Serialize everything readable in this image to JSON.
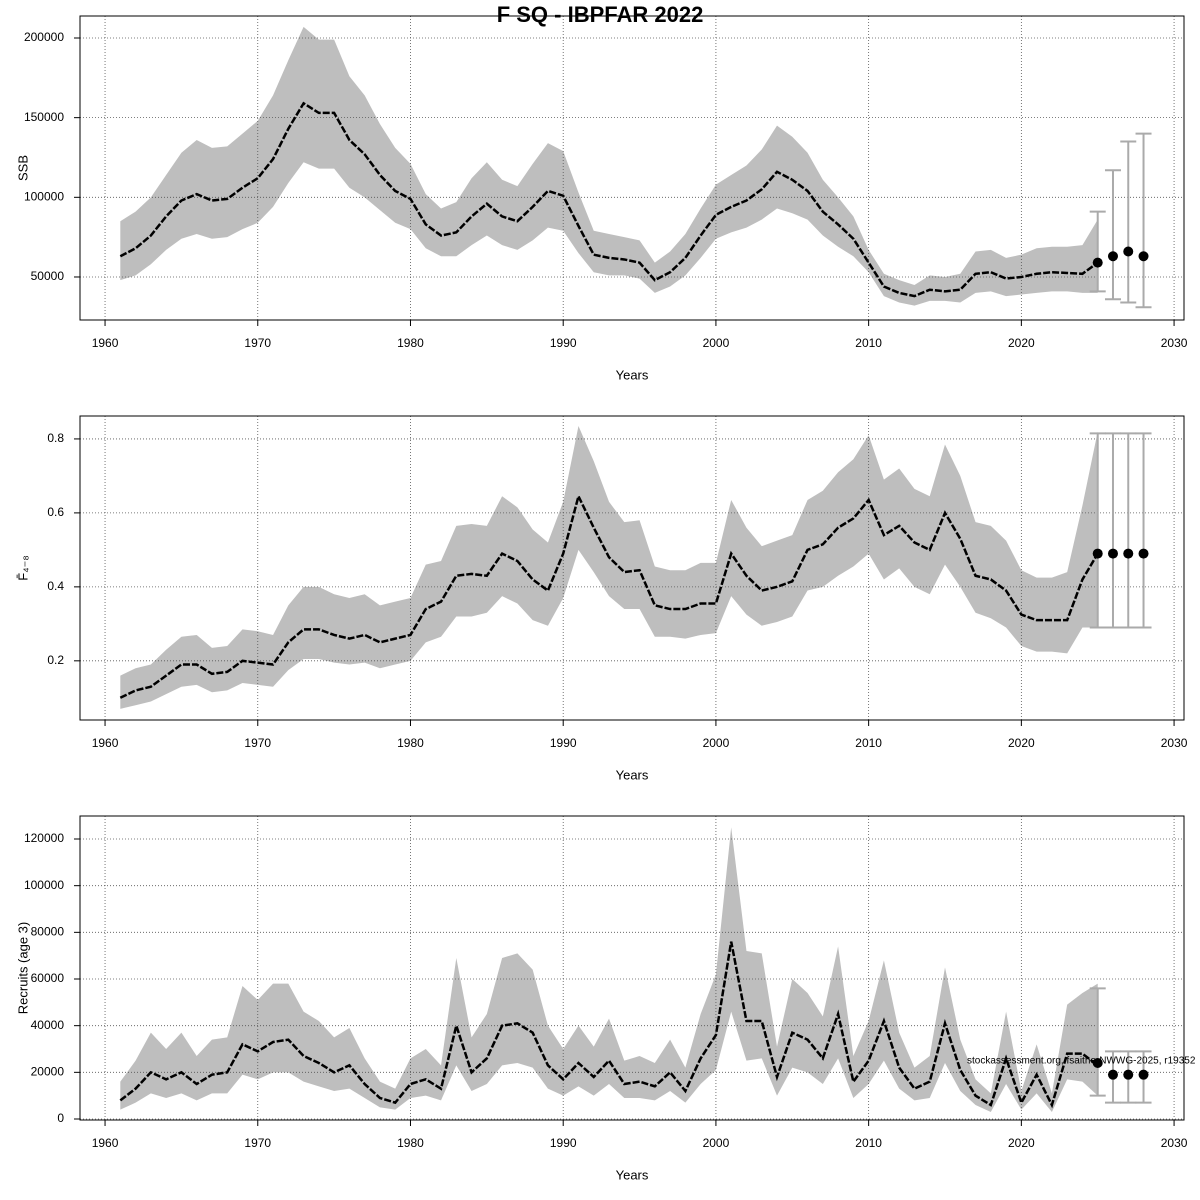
{
  "title": "F SQ - IBPFAR 2022",
  "chart_data": [
    {
      "type": "line",
      "ylabel": "SSB",
      "xlabel": "Years",
      "x": [
        1961,
        1962,
        1963,
        1964,
        1965,
        1966,
        1967,
        1968,
        1969,
        1970,
        1971,
        1972,
        1973,
        1974,
        1975,
        1976,
        1977,
        1978,
        1979,
        1980,
        1981,
        1982,
        1983,
        1984,
        1985,
        1986,
        1987,
        1988,
        1989,
        1990,
        1991,
        1992,
        1993,
        1994,
        1995,
        1996,
        1997,
        1998,
        1999,
        2000,
        2001,
        2002,
        2003,
        2004,
        2005,
        2006,
        2007,
        2008,
        2009,
        2010,
        2011,
        2012,
        2013,
        2014,
        2015,
        2016,
        2017,
        2018,
        2019,
        2020,
        2021,
        2022,
        2023,
        2024,
        2025
      ],
      "series": [
        {
          "color": "#000000",
          "values": [
            63000,
            68000,
            76000,
            88000,
            98000,
            102000,
            98000,
            99000,
            106000,
            112000,
            124000,
            143000,
            159000,
            153000,
            153000,
            136000,
            127000,
            114000,
            104000,
            99000,
            83000,
            76000,
            78000,
            88000,
            96000,
            88000,
            85000,
            94000,
            104000,
            101000,
            82000,
            64000,
            62000,
            61000,
            59000,
            48000,
            53000,
            62000,
            76000,
            89000,
            94000,
            98000,
            105000,
            116000,
            111000,
            104000,
            91000,
            83000,
            74000,
            59000,
            44000,
            40000,
            38000,
            42000,
            41000,
            42000,
            52000,
            53000,
            49000,
            50000,
            52000,
            53000,
            52500,
            52000,
            59000
          ]
        }
      ],
      "upper": [
        85000,
        91000,
        100000,
        114000,
        128000,
        136000,
        131000,
        132000,
        140000,
        148000,
        164000,
        186000,
        207000,
        199000,
        199000,
        176000,
        164000,
        146000,
        131000,
        121000,
        102000,
        93000,
        97000,
        112000,
        122000,
        111000,
        107000,
        121000,
        134000,
        129000,
        103000,
        79000,
        77000,
        75000,
        73000,
        59000,
        66000,
        77000,
        93000,
        108000,
        114000,
        120000,
        130000,
        145000,
        138000,
        128000,
        111000,
        100000,
        88000,
        67000,
        52000,
        48000,
        45000,
        51000,
        50000,
        52000,
        66000,
        67000,
        62000,
        64000,
        68000,
        69000,
        69000,
        70000,
        86000
      ],
      "lower": [
        48000,
        51000,
        58000,
        67000,
        74000,
        77000,
        74000,
        75000,
        80000,
        84000,
        94000,
        109000,
        122000,
        118000,
        118000,
        106000,
        100000,
        92000,
        84000,
        80000,
        68000,
        63000,
        63000,
        70000,
        76000,
        70000,
        67000,
        73000,
        81000,
        79000,
        65000,
        53000,
        51000,
        51000,
        49000,
        40000,
        44000,
        51000,
        62000,
        74000,
        78000,
        81000,
        86000,
        93000,
        90000,
        86000,
        76000,
        69000,
        63000,
        53000,
        38000,
        34000,
        32000,
        35000,
        35000,
        34000,
        40000,
        41000,
        38000,
        39000,
        40000,
        41000,
        41000,
        40000,
        40000
      ],
      "band_color": "#bebebe",
      "forecast": {
        "x": [
          2025,
          2026,
          2027,
          2028
        ],
        "values": [
          59000,
          63000,
          66000,
          63000
        ],
        "lower": [
          41000,
          36000,
          34000,
          31000
        ],
        "upper": [
          91000,
          117000,
          135000,
          140000
        ],
        "color": "#000000",
        "bar_color": "#aaaaaa"
      },
      "xlim": [
        1958.36,
        2030.65
      ],
      "xticks": [
        1960,
        1970,
        1980,
        1990,
        2000,
        2010,
        2020,
        2030
      ],
      "ylim": [
        23000,
        213800
      ],
      "yticks": [
        50000,
        100000,
        150000,
        200000
      ],
      "grid": true
    },
    {
      "type": "line",
      "ylabel": "F̄₄₋₈",
      "xlabel": "Years",
      "x": [
        1961,
        1962,
        1963,
        1964,
        1965,
        1966,
        1967,
        1968,
        1969,
        1970,
        1971,
        1972,
        1973,
        1974,
        1975,
        1976,
        1977,
        1978,
        1979,
        1980,
        1981,
        1982,
        1983,
        1984,
        1985,
        1986,
        1987,
        1988,
        1989,
        1990,
        1991,
        1992,
        1993,
        1994,
        1995,
        1996,
        1997,
        1998,
        1999,
        2000,
        2001,
        2002,
        2003,
        2004,
        2005,
        2006,
        2007,
        2008,
        2009,
        2010,
        2011,
        2012,
        2013,
        2014,
        2015,
        2016,
        2017,
        2018,
        2019,
        2020,
        2021,
        2022,
        2023,
        2024,
        2025
      ],
      "series": [
        {
          "color": "#000000",
          "values": [
            0.1,
            0.12,
            0.13,
            0.16,
            0.19,
            0.19,
            0.165,
            0.17,
            0.2,
            0.195,
            0.19,
            0.25,
            0.285,
            0.285,
            0.27,
            0.26,
            0.27,
            0.25,
            0.26,
            0.27,
            0.34,
            0.36,
            0.43,
            0.435,
            0.43,
            0.49,
            0.47,
            0.42,
            0.39,
            0.49,
            0.645,
            0.56,
            0.48,
            0.44,
            0.445,
            0.35,
            0.34,
            0.34,
            0.355,
            0.355,
            0.49,
            0.43,
            0.39,
            0.4,
            0.415,
            0.5,
            0.515,
            0.56,
            0.585,
            0.635,
            0.54,
            0.565,
            0.52,
            0.5,
            0.6,
            0.53,
            0.43,
            0.42,
            0.39,
            0.325,
            0.31,
            0.31,
            0.31,
            0.42,
            0.49
          ]
        }
      ],
      "upper": [
        0.16,
        0.18,
        0.19,
        0.23,
        0.265,
        0.27,
        0.235,
        0.24,
        0.285,
        0.28,
        0.27,
        0.35,
        0.4,
        0.4,
        0.38,
        0.37,
        0.38,
        0.35,
        0.36,
        0.37,
        0.46,
        0.47,
        0.565,
        0.57,
        0.565,
        0.645,
        0.615,
        0.555,
        0.52,
        0.63,
        0.835,
        0.74,
        0.63,
        0.575,
        0.58,
        0.455,
        0.445,
        0.445,
        0.465,
        0.465,
        0.635,
        0.56,
        0.51,
        0.525,
        0.54,
        0.635,
        0.66,
        0.71,
        0.745,
        0.81,
        0.69,
        0.72,
        0.665,
        0.645,
        0.785,
        0.7,
        0.575,
        0.565,
        0.525,
        0.445,
        0.425,
        0.425,
        0.44,
        0.62,
        0.82
      ],
      "lower": [
        0.07,
        0.08,
        0.09,
        0.11,
        0.13,
        0.135,
        0.115,
        0.12,
        0.14,
        0.135,
        0.13,
        0.175,
        0.205,
        0.205,
        0.195,
        0.19,
        0.195,
        0.18,
        0.19,
        0.2,
        0.25,
        0.265,
        0.32,
        0.32,
        0.33,
        0.375,
        0.355,
        0.31,
        0.295,
        0.37,
        0.5,
        0.44,
        0.375,
        0.34,
        0.34,
        0.265,
        0.265,
        0.26,
        0.27,
        0.275,
        0.375,
        0.325,
        0.295,
        0.305,
        0.32,
        0.39,
        0.4,
        0.43,
        0.455,
        0.49,
        0.42,
        0.45,
        0.4,
        0.38,
        0.46,
        0.4,
        0.33,
        0.315,
        0.29,
        0.24,
        0.225,
        0.225,
        0.22,
        0.29,
        0.29
      ],
      "band_color": "#bebebe",
      "forecast": {
        "x": [
          2025,
          2026,
          2027,
          2028
        ],
        "values": [
          0.49,
          0.49,
          0.49,
          0.49
        ],
        "lower": [
          0.29,
          0.29,
          0.29,
          0.29
        ],
        "upper": [
          0.815,
          0.815,
          0.815,
          0.815
        ],
        "color": "#000000",
        "bar_color": "#aaaaaa"
      },
      "xlim": [
        1958.36,
        2030.65
      ],
      "xticks": [
        1960,
        1970,
        1980,
        1990,
        2000,
        2010,
        2020,
        2030
      ],
      "ylim": [
        0.04,
        0.862
      ],
      "yticks": [
        0.2,
        0.4,
        0.6,
        0.8
      ],
      "grid": true
    },
    {
      "type": "line",
      "ylabel": "Recruits (age 3)",
      "xlabel": "Years",
      "x": [
        1961,
        1962,
        1963,
        1964,
        1965,
        1966,
        1967,
        1968,
        1969,
        1970,
        1971,
        1972,
        1973,
        1974,
        1975,
        1976,
        1977,
        1978,
        1979,
        1980,
        1981,
        1982,
        1983,
        1984,
        1985,
        1986,
        1987,
        1988,
        1989,
        1990,
        1991,
        1992,
        1993,
        1994,
        1995,
        1996,
        1997,
        1998,
        1999,
        2000,
        2001,
        2002,
        2003,
        2004,
        2005,
        2006,
        2007,
        2008,
        2009,
        2010,
        2011,
        2012,
        2013,
        2014,
        2015,
        2016,
        2017,
        2018,
        2019,
        2020,
        2021,
        2022,
        2023,
        2024,
        2025
      ],
      "series": [
        {
          "color": "#000000",
          "values": [
            8000,
            13000,
            20000,
            17000,
            20000,
            15000,
            19000,
            20000,
            32000,
            29000,
            33000,
            34000,
            27000,
            24000,
            20000,
            23000,
            15000,
            9000,
            7000,
            15000,
            17000,
            13000,
            40000,
            20000,
            26000,
            40000,
            41000,
            37000,
            23000,
            17000,
            24000,
            18000,
            25000,
            15000,
            16000,
            14000,
            20000,
            12000,
            26000,
            36000,
            76000,
            42000,
            42000,
            18000,
            37000,
            34000,
            26000,
            45000,
            16000,
            25000,
            42000,
            22000,
            13000,
            16000,
            41000,
            21000,
            10000,
            6000,
            26000,
            7000,
            19000,
            6000,
            28000,
            28000,
            23000
          ]
        }
      ],
      "upper": [
        16000,
        25000,
        37000,
        30000,
        37000,
        27000,
        34000,
        35000,
        57000,
        51000,
        58000,
        58000,
        46000,
        42000,
        35000,
        39000,
        26000,
        16000,
        13000,
        26000,
        30000,
        23000,
        69000,
        35000,
        45000,
        69000,
        71000,
        64000,
        40000,
        30000,
        40000,
        31000,
        43000,
        25000,
        27000,
        24000,
        34000,
        22000,
        45000,
        62000,
        125000,
        72000,
        71000,
        31000,
        60000,
        54000,
        44000,
        74000,
        27000,
        42000,
        68000,
        37000,
        22000,
        27000,
        65000,
        34000,
        17000,
        11000,
        46000,
        12000,
        32000,
        11000,
        49000,
        54000,
        58000
      ],
      "lower": [
        4000,
        7000,
        11000,
        9000,
        11000,
        8000,
        11000,
        11000,
        19000,
        17000,
        20000,
        20000,
        16000,
        14000,
        12000,
        13000,
        9000,
        5000,
        4000,
        9000,
        10000,
        8000,
        23000,
        12000,
        15000,
        23000,
        24000,
        22000,
        13000,
        10000,
        14000,
        10000,
        15000,
        9000,
        9000,
        8000,
        12000,
        7000,
        15000,
        21000,
        46000,
        25000,
        26000,
        10000,
        22000,
        20000,
        15000,
        26000,
        9000,
        15000,
        25000,
        13000,
        8000,
        9000,
        24000,
        12000,
        6000,
        3000,
        15000,
        4000,
        11000,
        3000,
        17000,
        16000,
        10000
      ],
      "band_color": "#bebebe",
      "forecast": {
        "x": [
          2025,
          2026,
          2027,
          2028
        ],
        "values": [
          24000,
          19000,
          19000,
          19000
        ],
        "lower": [
          10000,
          7000,
          7000,
          7000
        ],
        "upper": [
          56000,
          29000,
          29000,
          29000
        ],
        "color": "#000000",
        "bar_color": "#aaaaaa"
      },
      "annotation": "stockassessment.org, fsaithe-NWWG-2025, r19352",
      "xlim": [
        1958.36,
        2030.65
      ],
      "xticks": [
        1960,
        1970,
        1980,
        1990,
        2000,
        2010,
        2020,
        2030
      ],
      "ylim": [
        -430,
        129860
      ],
      "yticks": [
        0,
        20000,
        40000,
        60000,
        80000,
        100000,
        120000
      ],
      "grid": true
    }
  ]
}
